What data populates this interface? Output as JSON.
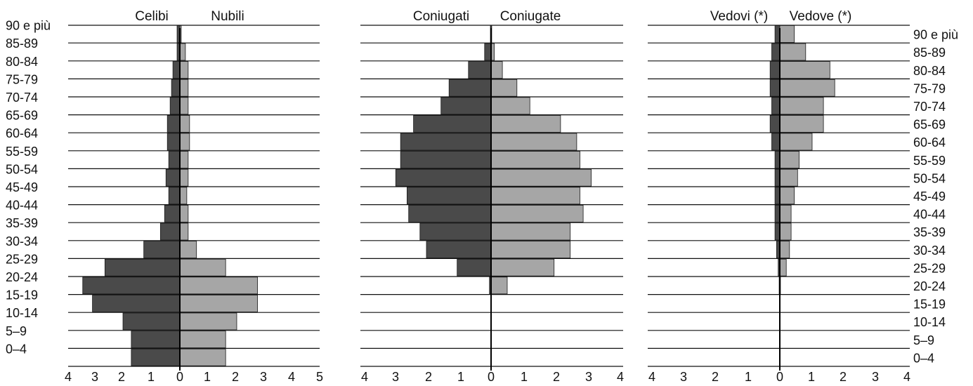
{
  "chart_data": [
    {
      "type": "bar",
      "orientation": "horizontal-pyramid",
      "categories": [
        "0–4",
        "5–9",
        "10-14",
        "15-19",
        "20-24",
        "25-29",
        "30-34",
        "35-39",
        "40-44",
        "45-49",
        "50-54",
        "55-59",
        "60-64",
        "65-69",
        "70-74",
        "75-79",
        "80-84",
        "85-89",
        "90 e più"
      ],
      "series": [
        {
          "name": "Celibi",
          "side": "left",
          "color": "#4a4a4a",
          "values": [
            1.75,
            1.75,
            2.05,
            3.15,
            3.5,
            2.7,
            1.3,
            0.7,
            0.55,
            0.4,
            0.5,
            0.4,
            0.45,
            0.45,
            0.35,
            0.3,
            0.25,
            0.1,
            0.1
          ]
        },
        {
          "name": "Nubili",
          "side": "right",
          "color": "#a6a6a6",
          "values": [
            1.65,
            1.65,
            2.05,
            2.8,
            2.8,
            1.65,
            0.6,
            0.3,
            0.3,
            0.25,
            0.3,
            0.3,
            0.35,
            0.35,
            0.3,
            0.3,
            0.3,
            0.2,
            0.05
          ]
        }
      ],
      "xlim_left": [
        0,
        4
      ],
      "xlim_right": [
        0,
        5
      ],
      "ticks": [
        "4",
        "3",
        "2",
        "1",
        "0",
        "1",
        "2",
        "3",
        "4",
        "5"
      ],
      "grid": true
    },
    {
      "type": "bar",
      "orientation": "horizontal-pyramid",
      "categories": [
        "0–4",
        "5–9",
        "10-14",
        "15-19",
        "20-24",
        "25-29",
        "30-34",
        "35-39",
        "40-44",
        "45-49",
        "50-54",
        "55-59",
        "60-64",
        "65-69",
        "70-74",
        "75-79",
        "80-84",
        "85-89",
        "90 e più"
      ],
      "series": [
        {
          "name": "Coniugati",
          "side": "left",
          "color": "#4a4a4a",
          "values": [
            0,
            0,
            0,
            0,
            0.05,
            1.05,
            2.0,
            2.2,
            2.55,
            2.6,
            2.95,
            2.8,
            2.8,
            2.4,
            1.55,
            1.3,
            0.7,
            0.2,
            0.02
          ]
        },
        {
          "name": "Coniugate",
          "side": "right",
          "color": "#a6a6a6",
          "values": [
            0,
            0,
            0,
            0,
            0.5,
            1.95,
            2.45,
            2.45,
            2.85,
            2.75,
            3.1,
            2.75,
            2.65,
            2.15,
            1.2,
            0.8,
            0.35,
            0.1,
            0.02
          ]
        }
      ],
      "xlim_left": [
        0,
        4
      ],
      "xlim_right": [
        0,
        4
      ],
      "ticks": [
        "4",
        "3",
        "2",
        "1",
        "0",
        "1",
        "2",
        "3",
        "4"
      ],
      "grid": true
    },
    {
      "type": "bar",
      "orientation": "horizontal-pyramid",
      "categories": [
        "0–4",
        "5–9",
        "10-14",
        "15-19",
        "20-24",
        "25-29",
        "30-34",
        "35-39",
        "40-44",
        "45-49",
        "50-54",
        "55-59",
        "60-64",
        "65-69",
        "70-74",
        "75-79",
        "80-84",
        "85-89",
        "90 e più"
      ],
      "series": [
        {
          "name": "Vedovi (*)",
          "side": "left",
          "color": "#4a4a4a",
          "values": [
            0,
            0,
            0,
            0,
            0.02,
            0.05,
            0.1,
            0.15,
            0.15,
            0.15,
            0.15,
            0.15,
            0.25,
            0.3,
            0.25,
            0.3,
            0.3,
            0.25,
            0.15
          ]
        },
        {
          "name": "Vedove (*)",
          "side": "right",
          "color": "#a6a6a6",
          "values": [
            0,
            0,
            0,
            0,
            0.02,
            0.2,
            0.3,
            0.35,
            0.35,
            0.45,
            0.55,
            0.6,
            1.0,
            1.35,
            1.35,
            1.7,
            1.55,
            0.8,
            0.45
          ]
        }
      ],
      "xlim_left": [
        0,
        4
      ],
      "xlim_right": [
        0,
        4
      ],
      "ticks": [
        "4",
        "3",
        "2",
        "1",
        "0",
        "1",
        "2",
        "3",
        "4"
      ],
      "grid": true
    }
  ],
  "colors": {
    "male": "#4a4a4a",
    "female": "#a6a6a6",
    "grid": "#111111"
  }
}
